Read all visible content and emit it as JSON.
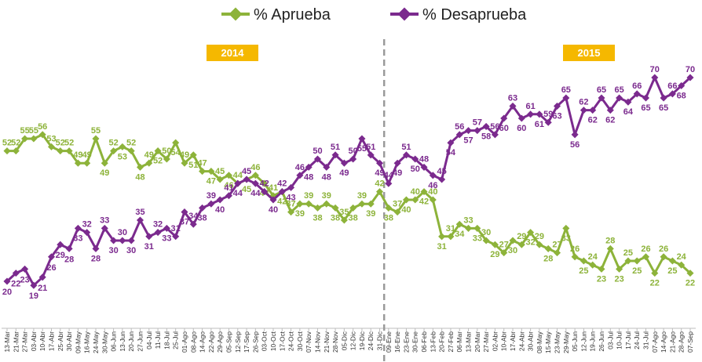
{
  "chart_data": {
    "type": "line",
    "title": "",
    "xlabel": "",
    "ylabel": "",
    "legend_position": "top",
    "grid": false,
    "year_labels": [
      "2014",
      "2015"
    ],
    "year_label_color": "#f5b800",
    "divider_style": "dashed",
    "categories": [
      "13-Mar",
      "21-Mar",
      "27-Mar",
      "03-Abr",
      "10-Abr",
      "17-Abr",
      "25-Abr",
      "30-Abr",
      "09-May",
      "16-May",
      "24-May",
      "30-May",
      "06-Jun",
      "13-Jun",
      "20-Jun",
      "27-Jun",
      "04-Jul",
      "11-Jul",
      "18-Jul",
      "25-Jul",
      "01-Ago",
      "08-Ago",
      "14-Ago",
      "22-Ago",
      "29-Ago",
      "05-Sep",
      "12-Sep",
      "17-Sep",
      "26-Sep",
      "03-Oct",
      "10-Oct",
      "17-Oct",
      "24-Oct",
      "30-Oct",
      "07-Nov",
      "14-Nov",
      "21-Nov",
      "28-Nov",
      "05-Dic",
      "12-Dic",
      "19-Dic",
      "24-Dic",
      "31-Dic",
      "09-Ene",
      "16-Ene",
      "23-Ene",
      "30-Ene",
      "06-Feb",
      "13-Feb",
      "20-Feb",
      "27-Feb",
      "06-Mar",
      "13-Mar",
      "20-Mar",
      "27-Mar",
      "02-Abr",
      "10-Abr",
      "17-Abr",
      "24-Abr",
      "30-Abr",
      "08-May",
      "15-May",
      "23-May",
      "29-May",
      "05-Jun",
      "12-Jun",
      "19-Jun",
      "26-Jun",
      "03-Jul",
      "10-Jul",
      "17-Jul",
      "24-Jul",
      "31-Jul",
      "07-Ago",
      "14-Ago",
      "21-Ago",
      "28-Ago",
      "07-Sep"
    ],
    "ylim": [
      15,
      75
    ],
    "divider_after_index": 42,
    "series": [
      {
        "name": "% Aprueba",
        "color": "#8db33a",
        "values": [
          52,
          52,
          55,
          55,
          56,
          53,
          52,
          52,
          49,
          49,
          55,
          49,
          52,
          53,
          52,
          48,
          49,
          52,
          50,
          54,
          49,
          51,
          47,
          47,
          45,
          46,
          44,
          45,
          46,
          44,
          41,
          42,
          37,
          39,
          39,
          38,
          39,
          38,
          35,
          38,
          39,
          39,
          42,
          38,
          37,
          40,
          40,
          42,
          40,
          31,
          31,
          34,
          33,
          33,
          30,
          29,
          27,
          30,
          29,
          32,
          29,
          28,
          27,
          33,
          26,
          25,
          24,
          23,
          28,
          23,
          25,
          25,
          26,
          22,
          26,
          25,
          24,
          22
        ],
        "labels": [
          "52",
          "52",
          "55",
          "55",
          "56",
          "53",
          "52",
          "52",
          "49",
          "49",
          "55",
          "49",
          "52",
          "53",
          "52",
          "48",
          "49",
          "52",
          "50",
          "54",
          "49",
          "51",
          "47",
          "47",
          "45",
          "46",
          "44",
          "45",
          "46",
          "44",
          "41",
          "42",
          "37",
          "39",
          "39",
          "38",
          "39",
          "38",
          "35",
          "38",
          "39",
          "39",
          "42",
          "38",
          "37",
          "40",
          "40",
          "42",
          "40",
          "31",
          "31",
          "34",
          "33",
          "33",
          "30",
          "29",
          "27",
          "30",
          "29",
          "32",
          "29",
          "28",
          "27",
          "33",
          "26",
          "25",
          "24",
          "23",
          "28",
          "23",
          "25",
          "25",
          "26",
          "22",
          "26",
          "25",
          "24",
          "22"
        ]
      },
      {
        "name": "% Desaprueba",
        "color": "#7b2a8e",
        "values": [
          20,
          22,
          23,
          19,
          21,
          26,
          29,
          28,
          33,
          32,
          28,
          33,
          30,
          30,
          30,
          35,
          31,
          32,
          33,
          31,
          37,
          34,
          38,
          39,
          40,
          41,
          44,
          45,
          44,
          42,
          40,
          42,
          43,
          46,
          48,
          50,
          48,
          51,
          49,
          50,
          55,
          51,
          49,
          44,
          49,
          51,
          50,
          48,
          46,
          45,
          54,
          56,
          57,
          57,
          58,
          56,
          60,
          63,
          60,
          61,
          61,
          59,
          63,
          65,
          56,
          62,
          62,
          65,
          62,
          65,
          64,
          66,
          65,
          70,
          65,
          66,
          68,
          70
        ],
        "labels": [
          "20",
          "22",
          "23",
          "19",
          "21",
          "26",
          "29",
          "28",
          "33",
          "32",
          "28",
          "33",
          "30",
          "30",
          "30",
          "35",
          "31",
          "32",
          "33",
          "31",
          "37",
          "34",
          "38",
          "39",
          "40",
          "41",
          "44",
          "45",
          "44",
          "42",
          "40",
          "42",
          "43",
          "46",
          "48",
          "50",
          "48",
          "51",
          "49",
          "50",
          "55",
          "51",
          "49",
          "44",
          "49",
          "51",
          "50",
          "48",
          "46",
          "45",
          "54",
          "56",
          "57",
          "57",
          "58",
          "56",
          "60",
          "63",
          "60",
          "61",
          "61",
          "59",
          "63",
          "65",
          "56",
          "62",
          "62",
          "65",
          "62",
          "65",
          "64",
          "66",
          "65",
          "70",
          "65",
          "66",
          "68",
          "70"
        ]
      }
    ]
  }
}
